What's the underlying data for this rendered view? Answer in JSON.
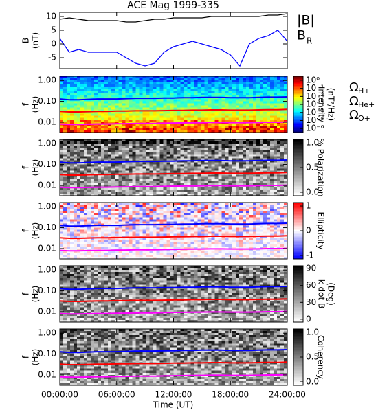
{
  "chart_data": {
    "type": "multi-panel",
    "title": "ACE Mag 1999-335",
    "xlabel": "Time (UT)",
    "xlim": [
      0,
      24
    ],
    "xticks": [
      {
        "value": 0,
        "label": "00:00:00"
      },
      {
        "value": 6,
        "label": "06:00:00"
      },
      {
        "value": 12,
        "label": "12:00:00"
      },
      {
        "value": 18,
        "label": "18:00:00"
      },
      {
        "value": 24,
        "label": "24:00:00"
      }
    ],
    "x": [
      0,
      1,
      2,
      3,
      4,
      5,
      6,
      7,
      8,
      9,
      10,
      11,
      12,
      13,
      14,
      15,
      16,
      17,
      18,
      19,
      20,
      21,
      22,
      23,
      24
    ],
    "gyrofrequencies": {
      "symbol": "Ω",
      "series": [
        {
          "name": "H+",
          "color": "#0000ff",
          "values": [
            0.13,
            0.12,
            0.12,
            0.125,
            0.13,
            0.13,
            0.13,
            0.135,
            0.14,
            0.14,
            0.14,
            0.145,
            0.145,
            0.15,
            0.15,
            0.155,
            0.155,
            0.155,
            0.15,
            0.15,
            0.15,
            0.155,
            0.16,
            0.16,
            0.165
          ]
        },
        {
          "name": "He+",
          "color": "#ff0000",
          "values": [
            0.033,
            0.031,
            0.031,
            0.032,
            0.033,
            0.033,
            0.034,
            0.034,
            0.035,
            0.035,
            0.035,
            0.036,
            0.037,
            0.037,
            0.038,
            0.038,
            0.039,
            0.039,
            0.038,
            0.038,
            0.038,
            0.039,
            0.04,
            0.04,
            0.041
          ]
        },
        {
          "name": "O+",
          "color": "#ff00ff",
          "values": [
            0.0082,
            0.0078,
            0.0078,
            0.008,
            0.0082,
            0.0082,
            0.0084,
            0.0085,
            0.0087,
            0.0088,
            0.0088,
            0.009,
            0.0092,
            0.0093,
            0.0094,
            0.0095,
            0.0097,
            0.0097,
            0.0095,
            0.0095,
            0.0095,
            0.0097,
            0.01,
            0.01,
            0.0103
          ]
        }
      ]
    },
    "panels": [
      {
        "type": "line",
        "ylabel": [
          "B",
          "(nT)"
        ],
        "ylim": [
          -9,
          11.5
        ],
        "yticks": [
          10,
          5,
          0,
          -5
        ],
        "series": [
          {
            "name": "|B|",
            "color": "#000000",
            "values": [
              9,
              9.5,
              9,
              8.5,
              8.5,
              8.5,
              8.5,
              8,
              8,
              8.5,
              9,
              9,
              9.5,
              9.5,
              9.5,
              9.5,
              10,
              10,
              10,
              10,
              10,
              10,
              10.5,
              10.5,
              11
            ]
          },
          {
            "name": "B",
            "subscript": "R",
            "color": "#0000ff",
            "values": [
              2,
              -3,
              -2,
              -3,
              -3,
              -3,
              -3,
              -5,
              -7,
              -8,
              -7,
              -3,
              -1,
              0,
              1,
              0,
              -1,
              -2,
              -4,
              -8,
              0,
              2,
              3,
              5,
              1
            ]
          }
        ]
      },
      {
        "type": "spectrogram",
        "ylabel": [
          "f",
          "(Hz)"
        ],
        "ylim": [
          0.0032,
          1.6
        ],
        "log_y": true,
        "yticks": [
          {
            "value": 1,
            "label": "1.00"
          },
          {
            "value": 0.1,
            "label": "0.10"
          },
          {
            "value": 0.01,
            "label": "0.01"
          }
        ],
        "colorbar": {
          "label": [
            "Intensity",
            "(nT²/Hz)"
          ],
          "lim": [
            3.2e-07,
            3.2
          ],
          "log": true,
          "colormap": "jet",
          "ticks": [
            {
              "value": 1,
              "label": "10⁰"
            },
            {
              "value": 0.1,
              "label": "10⁻¹"
            },
            {
              "value": 0.01,
              "label": "10⁻²"
            },
            {
              "value": 0.001,
              "label": "10⁻³"
            },
            {
              "value": 0.0001,
              "label": "10⁻⁴"
            },
            {
              "value": 1e-05,
              "label": "10⁻⁵"
            },
            {
              "value": 1e-06,
              "label": "10⁻⁶"
            }
          ]
        }
      },
      {
        "type": "spectrogram",
        "ylabel": [
          "f",
          "(Hz)"
        ],
        "ylim": [
          0.0032,
          1.6
        ],
        "log_y": true,
        "yticks": [
          {
            "value": 1,
            "label": "1.00"
          },
          {
            "value": 0.1,
            "label": "0.10"
          },
          {
            "value": 0.01,
            "label": "0.01"
          }
        ],
        "colorbar": {
          "label": [
            "% Polarization"
          ],
          "lim": [
            -0.07,
            1.07
          ],
          "log": false,
          "colormap": "gray",
          "ticks": [
            {
              "value": 1,
              "label": "1.0"
            },
            {
              "value": 0.5,
              "label": "0.5"
            },
            {
              "value": 0,
              "label": "0.0"
            }
          ]
        }
      },
      {
        "type": "spectrogram",
        "ylabel": [
          "f",
          "(Hz)"
        ],
        "ylim": [
          0.0032,
          1.6
        ],
        "log_y": true,
        "yticks": [
          {
            "value": 1,
            "label": "1.00"
          },
          {
            "value": 0.1,
            "label": "0.10"
          },
          {
            "value": 0.01,
            "label": "0.01"
          }
        ],
        "colorbar": {
          "label": [
            "Ellipticity"
          ],
          "lim": [
            -1.14,
            1.14
          ],
          "log": false,
          "colormap": "bwr",
          "ticks": [
            1,
            0,
            -1
          ]
        }
      },
      {
        "type": "spectrogram",
        "ylabel": [
          "f",
          "(Hz)"
        ],
        "ylim": [
          0.0032,
          1.6
        ],
        "log_y": true,
        "yticks": [
          {
            "value": 1,
            "label": "1.00"
          },
          {
            "value": 0.1,
            "label": "0.10"
          },
          {
            "value": 0.01,
            "label": "0.01"
          }
        ],
        "colorbar": {
          "label": [
            "k dot B",
            "(Deg)"
          ],
          "lim": [
            -5,
            95
          ],
          "log": false,
          "colormap": "gray",
          "ticks": [
            90,
            60,
            30,
            0
          ]
        }
      },
      {
        "type": "spectrogram",
        "ylabel": [
          "f",
          "(Hz)"
        ],
        "ylim": [
          0.0032,
          1.6
        ],
        "log_y": true,
        "yticks": [
          {
            "value": 1,
            "label": "1.00"
          },
          {
            "value": 0.1,
            "label": "0.10"
          },
          {
            "value": 0.01,
            "label": "0.01"
          }
        ],
        "colorbar": {
          "label": [
            "Coherency"
          ],
          "lim": [
            -0.07,
            1.07
          ],
          "log": false,
          "colormap": "gray",
          "ticks": [
            {
              "value": 1,
              "label": "1.0"
            },
            {
              "value": 0.5,
              "label": "0.5"
            },
            {
              "value": 0,
              "label": "0.0"
            }
          ]
        }
      }
    ]
  }
}
